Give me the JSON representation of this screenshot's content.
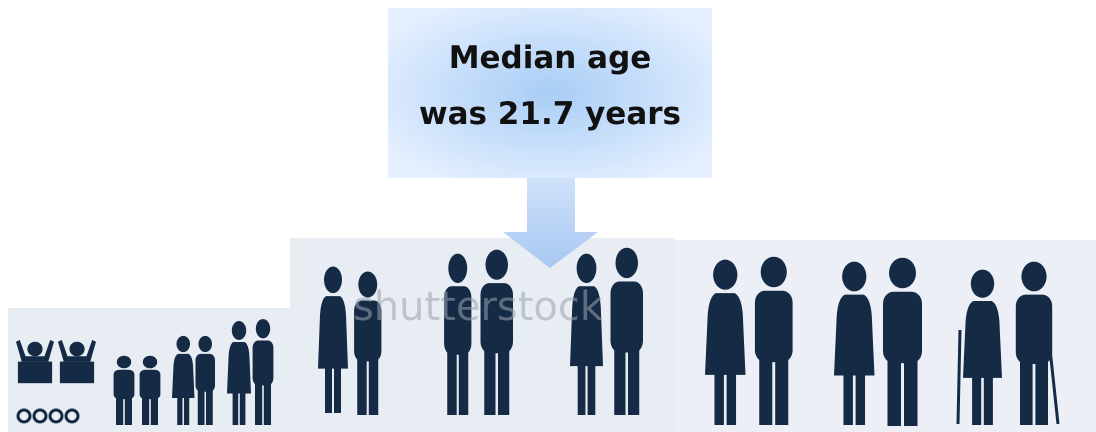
{
  "callout": {
    "lines": [
      "Median age",
      "was 21.7 years"
    ]
  },
  "watermark": "shutterstock"
}
